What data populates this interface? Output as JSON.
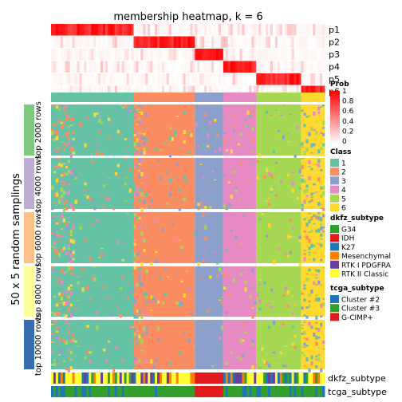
{
  "chart_data": {
    "type": "heatmap",
    "title": "membership heatmap, k = 6",
    "ylabel": "50 x 5 random samplings",
    "k": 6,
    "n_samples": 116,
    "class_sizes": [
      35,
      26,
      12,
      14,
      19,
      10
    ],
    "prob_rows": [
      "p1",
      "p2",
      "p3",
      "p4",
      "p5",
      "p6"
    ],
    "row_groups": [
      "top 2000 rows",
      "top 4000 rows",
      "top 6000 rows",
      "top 8000 rows",
      "top 10000 rows"
    ],
    "bottom_annotations": [
      "dkfz_subtype",
      "tcga_subtype"
    ],
    "legend": {
      "prob": {
        "title": "Prob",
        "ticks": [
          "1",
          "0.8",
          "0.6",
          "0.4",
          "0.2",
          "0"
        ],
        "low": "#ffffff",
        "high": "#ff0000"
      },
      "class": {
        "title": "Class",
        "items": [
          {
            "label": "1",
            "color": "#66C2A5"
          },
          {
            "label": "2",
            "color": "#FC8D62"
          },
          {
            "label": "3",
            "color": "#8DA0CB"
          },
          {
            "label": "4",
            "color": "#E78AC3"
          },
          {
            "label": "5",
            "color": "#A6D854"
          },
          {
            "label": "6",
            "color": "#FFD92F"
          }
        ]
      },
      "dkfz_subtype": {
        "title": "dkfz_subtype",
        "items": [
          {
            "label": "G34",
            "color": "#33A02C"
          },
          {
            "label": "IDH",
            "color": "#E31A1C"
          },
          {
            "label": "K27",
            "color": "#1F78B4"
          },
          {
            "label": "Mesenchymal",
            "color": "#FF7F00"
          },
          {
            "label": "RTK I PDGFRA",
            "color": "#6A3D9A"
          },
          {
            "label": "RTK II Classic",
            "color": "#FFFF33"
          }
        ]
      },
      "tcga_subtype": {
        "title": "tcga_subtype",
        "items": [
          {
            "label": "Cluster #2",
            "color": "#1F78B4"
          },
          {
            "label": "Cluster #3",
            "color": "#33A02C"
          },
          {
            "label": "G-CIMP+",
            "color": "#E31A1C"
          }
        ]
      }
    }
  }
}
